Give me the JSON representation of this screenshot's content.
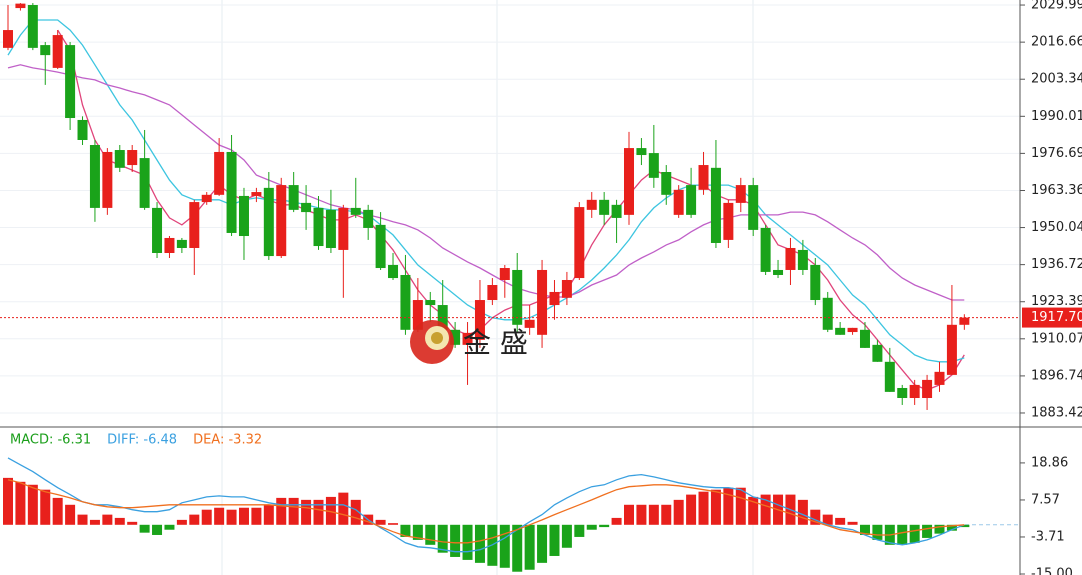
{
  "chart_data": [
    {
      "type": "candlestick",
      "open": [
        2014.6,
        2028.9,
        2030.0,
        2015.6,
        2007.4,
        2015.6,
        1988.7,
        1979.7,
        1957.1,
        1977.9,
        1972.5,
        1975.0,
        1957.1,
        1940.9,
        1945.6,
        1942.7,
        1959.2,
        1961.8,
        1977.2,
        1961.4,
        1961.4,
        1964.3,
        1939.8,
        1965.3,
        1958.9,
        1957.1,
        1956.4,
        1942.0,
        1957.1,
        1956.4,
        1951.0,
        1936.6,
        1933.0,
        1913.3,
        1924.0,
        1922.2,
        1913.3,
        1907.9,
        1909.7,
        1924.0,
        1931.2,
        1934.8,
        1914.0,
        1911.5,
        1922.2,
        1924.8,
        1931.9,
        1956.4,
        1960.0,
        1958.2,
        1954.6,
        1978.6,
        1976.8,
        1970.0,
        1954.6,
        1965.3,
        1963.6,
        1971.5,
        1945.6,
        1958.9,
        1965.3,
        1949.9,
        1934.8,
        1934.8,
        1942.0,
        1936.6,
        1924.8,
        1914.0,
        1912.5,
        1913.3,
        1907.9,
        1901.8,
        1892.4,
        1888.8,
        1888.8,
        1893.5,
        1897.1,
        1915.1
      ],
      "high": [
        2030.0,
        2030.7,
        2030.7,
        2016.7,
        2021.0,
        2016.7,
        1990.0,
        1981.5,
        1978.6,
        1979.7,
        1979.7,
        1985.1,
        1959.2,
        1947.0,
        1946.3,
        1960.0,
        1962.8,
        1982.2,
        1983.3,
        1964.3,
        1964.3,
        1970.0,
        1967.9,
        1970.0,
        1965.3,
        1961.4,
        1963.6,
        1958.2,
        1967.9,
        1958.2,
        1955.6,
        1940.9,
        1940.2,
        1931.9,
        1926.9,
        1931.2,
        1916.1,
        1916.1,
        1931.2,
        1931.9,
        1936.6,
        1940.9,
        1922.2,
        1938.4,
        1931.2,
        1934.1,
        1959.2,
        1962.8,
        1962.8,
        1960.0,
        1984.4,
        1982.2,
        1986.9,
        1972.5,
        1965.3,
        1971.5,
        1977.2,
        1981.5,
        1960.0,
        1967.9,
        1967.9,
        1951.0,
        1938.4,
        1946.3,
        1945.6,
        1939.1,
        1926.9,
        1916.1,
        1914.0,
        1916.1,
        1909.7,
        1906.8,
        1893.5,
        1895.3,
        1897.1,
        1901.8,
        1929.4,
        1918.9
      ],
      "low": [
        2013.8,
        2028.0,
        2013.8,
        2001.3,
        2007.0,
        1985.1,
        1979.7,
        1952.1,
        1954.6,
        1970.0,
        1970.0,
        1956.4,
        1939.1,
        1939.1,
        1940.9,
        1933.0,
        1958.2,
        1961.4,
        1947.0,
        1938.4,
        1959.2,
        1938.4,
        1939.1,
        1955.6,
        1949.2,
        1942.0,
        1940.9,
        1924.8,
        1953.5,
        1945.6,
        1934.8,
        1931.2,
        1911.5,
        1912.5,
        1916.1,
        1911.5,
        1906.8,
        1893.5,
        1906.8,
        1922.2,
        1924.8,
        1912.2,
        1911.5,
        1906.8,
        1916.9,
        1922.2,
        1931.2,
        1953.5,
        1951.0,
        1944.5,
        1951.0,
        1972.5,
        1964.3,
        1958.2,
        1953.5,
        1953.5,
        1961.8,
        1942.7,
        1942.7,
        1955.6,
        1947.0,
        1933.0,
        1931.9,
        1929.4,
        1933.0,
        1922.2,
        1912.5,
        1911.5,
        1911.5,
        1906.8,
        1901.8,
        1891.0,
        1886.3,
        1886.3,
        1884.5,
        1891.0,
        1897.1,
        1913.3
      ],
      "close": [
        2021.0,
        2030.5,
        2014.6,
        2012.0,
        2019.2,
        1989.4,
        1981.5,
        1957.1,
        1977.2,
        1971.5,
        1977.9,
        1957.1,
        1940.9,
        1946.3,
        1942.7,
        1959.2,
        1961.8,
        1977.2,
        1948.1,
        1947.0,
        1962.8,
        1939.8,
        1965.3,
        1956.4,
        1955.6,
        1943.4,
        1942.7,
        1957.1,
        1954.6,
        1949.9,
        1935.5,
        1931.9,
        1913.3,
        1924.0,
        1922.2,
        1913.3,
        1907.9,
        1912.2,
        1924.0,
        1929.4,
        1935.5,
        1915.1,
        1916.9,
        1934.8,
        1926.9,
        1931.2,
        1957.4,
        1960.0,
        1954.6,
        1953.5,
        1978.6,
        1976.1,
        1967.9,
        1961.8,
        1963.6,
        1954.6,
        1972.5,
        1944.5,
        1958.9,
        1965.3,
        1949.2,
        1934.1,
        1933.0,
        1942.7,
        1934.8,
        1924.0,
        1913.3,
        1911.5,
        1914.0,
        1906.8,
        1901.8,
        1891.0,
        1888.8,
        1893.5,
        1895.3,
        1898.2,
        1915.1,
        1917.7
      ],
      "up_color": "#e8201c",
      "down_color": "#1aa31a",
      "series": [
        {
          "color": "#e0457b",
          "values": [
            null,
            null,
            null,
            null,
            2021.0,
            2013.8,
            1994.1,
            1981.5,
            1974.3,
            1972.5,
            1970.7,
            1968.9,
            1960.0,
            1953.5,
            1951.0,
            1954.6,
            1960.0,
            1965.3,
            1961.8,
            1960.0,
            1961.8,
            1960.0,
            1958.2,
            1958.2,
            1956.4,
            1954.6,
            1952.8,
            1952.8,
            1954.6,
            1952.8,
            1947.4,
            1942.0,
            1934.8,
            1927.6,
            1922.2,
            1918.7,
            1913.3,
            1911.5,
            1913.3,
            1917.6,
            1920.4,
            1922.2,
            1922.2,
            1924.0,
            1925.8,
            1927.6,
            1934.8,
            1943.8,
            1951.0,
            1956.4,
            1961.8,
            1967.1,
            1970.7,
            1968.9,
            1967.1,
            1965.3,
            1965.3,
            1961.8,
            1960.0,
            1960.0,
            1958.2,
            1951.0,
            1943.8,
            1942.0,
            1940.2,
            1936.6,
            1931.2,
            1924.0,
            1918.7,
            1915.1,
            1909.7,
            1904.3,
            1898.9,
            1893.5,
            1891.7,
            1893.5,
            1897.1,
            1904.3
          ]
        },
        {
          "color": "#3dc5e0",
          "values": [
            2012.0,
            2019.2,
            2024.6,
            2024.6,
            2024.6,
            2021.0,
            2015.6,
            2008.5,
            2001.3,
            1994.1,
            1988.7,
            1981.5,
            1974.3,
            1967.1,
            1961.8,
            1960.0,
            1960.0,
            1960.0,
            1958.2,
            1960.0,
            1960.7,
            1960.0,
            1960.0,
            1959.2,
            1958.2,
            1957.1,
            1956.4,
            1956.4,
            1955.6,
            1954.6,
            1951.0,
            1947.4,
            1942.0,
            1936.6,
            1933.0,
            1929.4,
            1925.8,
            1922.2,
            1919.7,
            1917.6,
            1916.9,
            1916.9,
            1917.6,
            1919.7,
            1922.2,
            1924.8,
            1927.6,
            1931.2,
            1935.5,
            1940.2,
            1945.6,
            1952.1,
            1957.1,
            1960.7,
            1963.6,
            1965.3,
            1965.3,
            1965.3,
            1965.3,
            1963.6,
            1960.0,
            1954.6,
            1951.0,
            1947.4,
            1943.8,
            1940.2,
            1936.6,
            1931.2,
            1925.8,
            1922.2,
            1916.9,
            1911.5,
            1907.9,
            1904.3,
            1902.5,
            1901.8,
            1901.8,
            1903.2
          ]
        },
        {
          "color": "#c060c8",
          "values": [
            2007.4,
            2008.5,
            2007.4,
            2006.7,
            2005.9,
            2004.9,
            2003.8,
            2003.1,
            2001.3,
            2000.2,
            1998.8,
            1997.7,
            1995.9,
            1994.1,
            1990.5,
            1986.9,
            1983.3,
            1979.7,
            1977.9,
            1974.3,
            1968.9,
            1967.1,
            1965.3,
            1963.6,
            1961.8,
            1960.0,
            1958.2,
            1957.1,
            1956.4,
            1954.6,
            1953.5,
            1952.1,
            1951.0,
            1949.2,
            1946.3,
            1942.7,
            1940.2,
            1937.7,
            1935.5,
            1933.0,
            1930.5,
            1928.3,
            1926.9,
            1925.8,
            1925.1,
            1925.1,
            1926.9,
            1929.4,
            1931.2,
            1933.0,
            1936.6,
            1939.1,
            1941.3,
            1943.8,
            1945.6,
            1948.5,
            1951.0,
            1952.8,
            1953.5,
            1954.6,
            1954.6,
            1954.6,
            1954.6,
            1955.6,
            1955.6,
            1954.6,
            1952.1,
            1949.2,
            1946.3,
            1943.8,
            1940.2,
            1935.5,
            1931.9,
            1929.4,
            1927.6,
            1925.8,
            1924.0,
            1924.0
          ]
        }
      ],
      "ylim": [
        1879.1,
        2031.8
      ],
      "yticks": [
        2029.99,
        2016.66,
        2003.34,
        1990.01,
        1976.69,
        1963.36,
        1950.04,
        1936.72,
        1923.39,
        1910.07,
        1896.74,
        1883.42
      ],
      "grid": true,
      "last_price": {
        "value": 1917.7,
        "label": "1917.70"
      },
      "watermark": "金 盛"
    },
    {
      "type": "macd",
      "legend": [
        {
          "label": "MACD: -6.31",
          "color": "#1a9e1a"
        },
        {
          "label": "DIFF: -6.48",
          "color": "#3aa0e0"
        },
        {
          "label": "DEA: -3.32",
          "color": "#f07020"
        }
      ],
      "bars": {
        "up_color": "#e8201c",
        "down_color": "#1aa31a",
        "values": [
          14.3,
          13.1,
          12.2,
          10.7,
          8.2,
          6.1,
          3.1,
          1.5,
          3.1,
          2.1,
          0.9,
          -2.4,
          -3.1,
          -1.5,
          1.5,
          3.1,
          4.6,
          5.2,
          4.6,
          5.2,
          5.2,
          6.1,
          8.2,
          8.2,
          7.6,
          7.6,
          8.5,
          9.8,
          7.6,
          3.1,
          1.5,
          0.5,
          -3.7,
          -4.6,
          -6.1,
          -8.5,
          -9.8,
          -10.7,
          -11.6,
          -12.5,
          -13.1,
          -14.3,
          -13.7,
          -11.6,
          -9.5,
          -7.0,
          -3.7,
          -1.5,
          -0.7,
          2.1,
          6.1,
          6.1,
          6.1,
          6.1,
          7.6,
          9.2,
          10.1,
          10.7,
          11.3,
          11.3,
          8.5,
          9.2,
          9.2,
          9.2,
          7.6,
          4.6,
          3.1,
          2.1,
          0.9,
          -3.1,
          -4.6,
          -6.1,
          -6.1,
          -5.5,
          -4.0,
          -2.7,
          -1.8,
          -0.7
        ]
      },
      "series": [
        {
          "color": "#3aa0e0",
          "values": [
            20.4,
            18.3,
            16.2,
            13.7,
            11.3,
            9.2,
            7.0,
            6.1,
            6.1,
            5.5,
            4.6,
            4.0,
            4.0,
            4.6,
            6.7,
            7.6,
            8.5,
            8.8,
            8.5,
            8.5,
            7.6,
            6.7,
            6.1,
            6.1,
            6.1,
            6.1,
            6.1,
            6.1,
            4.6,
            1.5,
            -0.9,
            -3.1,
            -5.5,
            -6.7,
            -7.0,
            -7.6,
            -8.2,
            -8.2,
            -7.6,
            -6.1,
            -4.0,
            -1.5,
            0.9,
            3.1,
            6.1,
            8.2,
            10.1,
            11.6,
            12.2,
            13.7,
            14.9,
            15.3,
            14.6,
            13.7,
            12.8,
            12.2,
            11.6,
            11.3,
            11.3,
            10.7,
            8.5,
            7.6,
            6.1,
            4.6,
            3.1,
            1.5,
            0,
            -0.9,
            -1.5,
            -3.1,
            -4.6,
            -5.5,
            -6.1,
            -5.5,
            -4.6,
            -3.1,
            -1.5,
            0
          ]
        },
        {
          "color": "#f07020",
          "values": [
            13.7,
            12.8,
            11.3,
            10.1,
            9.2,
            8.2,
            7.0,
            6.1,
            5.5,
            5.2,
            5.2,
            5.5,
            5.8,
            6.1,
            6.1,
            6.1,
            6.1,
            6.1,
            6.1,
            6.1,
            6.1,
            6.1,
            5.8,
            5.5,
            5.2,
            4.6,
            4.0,
            3.1,
            2.1,
            0.9,
            -0.6,
            -2.1,
            -3.4,
            -4.0,
            -4.6,
            -5.2,
            -5.5,
            -5.5,
            -4.9,
            -4.0,
            -2.7,
            -1.5,
            0,
            1.5,
            3.1,
            4.6,
            6.1,
            7.6,
            9.2,
            10.7,
            11.6,
            11.9,
            12.2,
            12.2,
            11.9,
            11.3,
            10.7,
            10.1,
            9.2,
            8.2,
            7.0,
            5.8,
            4.6,
            3.4,
            2.1,
            0.9,
            -0.3,
            -1.5,
            -2.1,
            -2.7,
            -3.1,
            -3.1,
            -2.4,
            -1.8,
            -1.2,
            -0.6,
            -0.3,
            0
          ]
        }
      ],
      "ylim": [
        -15.3,
        29.5
      ],
      "yticks": [
        18.86,
        7.57,
        -3.71,
        {
          "value": -15,
          "label": "-15.00"
        }
      ]
    }
  ]
}
